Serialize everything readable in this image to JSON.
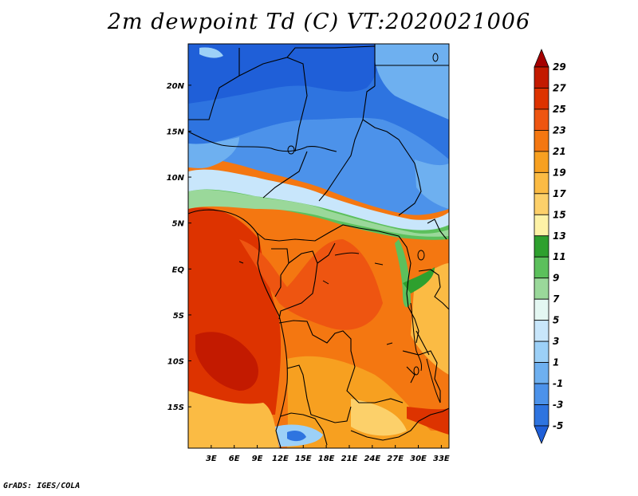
{
  "title": "2m dewpoint Td (C) VT:2020021006",
  "footer": "GrADS: IGES/COLA",
  "map": {
    "lon_range": [
      0,
      34
    ],
    "lat_range": [
      -19.5,
      24.5
    ],
    "lat_labels": [
      {
        "lat": 20,
        "text": "20N"
      },
      {
        "lat": 15,
        "text": "15N"
      },
      {
        "lat": 10,
        "text": "10N"
      },
      {
        "lat": 5,
        "text": "5N"
      },
      {
        "lat": 0,
        "text": "EQ"
      },
      {
        "lat": -5,
        "text": "5S"
      },
      {
        "lat": -10,
        "text": "10S"
      },
      {
        "lat": -15,
        "text": "15S"
      }
    ],
    "lon_labels": [
      {
        "lon": 3,
        "text": "3E"
      },
      {
        "lon": 6,
        "text": "6E"
      },
      {
        "lon": 9,
        "text": "9E"
      },
      {
        "lon": 12,
        "text": "12E"
      },
      {
        "lon": 15,
        "text": "15E"
      },
      {
        "lon": 18,
        "text": "18E"
      },
      {
        "lon": 21,
        "text": "21E"
      },
      {
        "lon": 24,
        "text": "24E"
      },
      {
        "lon": 27,
        "text": "27E"
      },
      {
        "lon": 30,
        "text": "30E"
      },
      {
        "lon": 33,
        "text": "33E"
      }
    ]
  },
  "colorbar": {
    "labels": [
      "29",
      "27",
      "25",
      "23",
      "21",
      "19",
      "17",
      "15",
      "13",
      "11",
      "9",
      "7",
      "5",
      "3",
      "1",
      "-1",
      "-3",
      "-5"
    ],
    "colors": [
      "#a50000",
      "#c31a00",
      "#dd3300",
      "#ee5511",
      "#f47711",
      "#f7a020",
      "#fbbb44",
      "#fcd06a",
      "#fdf2a6",
      "#2ea02e",
      "#5cc05c",
      "#9ad89a",
      "#e4f7f2",
      "#c8e6fb",
      "#9cd0f7",
      "#6eb0f0",
      "#4c92ea",
      "#2e74e0",
      "#1f5fd8"
    ]
  }
}
